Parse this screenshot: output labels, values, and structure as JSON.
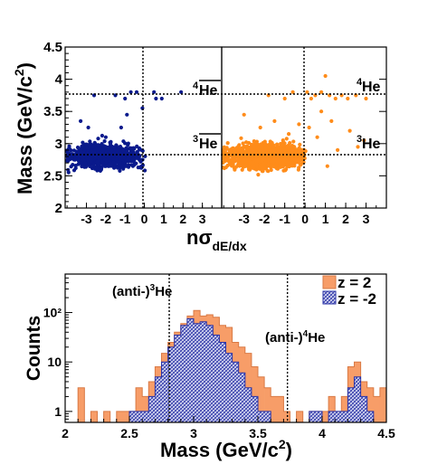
{
  "chart_data": [
    {
      "type": "scatter",
      "ylabel": "Mass (GeV/c²)",
      "ylabel_main": "Mass (GeV/c",
      "ylabel_sup": "2",
      "ylabel_end": ")",
      "xlabel_main": "nσ",
      "xlabel_sub": "dE/dx",
      "ylim": [
        2.0,
        4.5
      ],
      "y_ticks": [
        "2",
        "2.5",
        "3",
        "3.5",
        "4",
        "4.5"
      ],
      "panels": [
        {
          "name": "left",
          "color": "#0a1a8c",
          "xlim": [
            -4.1,
            4.0
          ],
          "x_ticks": [
            "-3",
            "-2",
            "-1",
            "0",
            "1",
            "2",
            "3"
          ],
          "label_top": "He",
          "label_top_sup": "4",
          "label_bottom": "He",
          "label_bottom_sup": "3",
          "overline": true,
          "scatter_core": {
            "x": [
              -4.1,
              0.0
            ],
            "y": [
              2.55,
              3.05
            ]
          },
          "scatter_extra": {
            "x": [
              -2.6,
              -1.5,
              -1.0,
              -0.7,
              -0.4,
              -0.1,
              0.5,
              0.6,
              0.9,
              1.9,
              -2.9,
              -3.3,
              -0.9,
              -1.2,
              -2.0
            ],
            "y": [
              3.75,
              3.75,
              3.7,
              3.8,
              3.8,
              3.55,
              3.8,
              3.7,
              3.7,
              3.8,
              3.25,
              3.35,
              3.45,
              3.25,
              3.1
            ]
          }
        },
        {
          "name": "right",
          "color": "#ff8c1a",
          "xlim": [
            -4.1,
            4.0
          ],
          "x_ticks": [
            "-3",
            "-2",
            "-1",
            "0",
            "1",
            "2",
            "3"
          ],
          "label_top": "He",
          "label_top_sup": "4",
          "label_bottom": "He",
          "label_bottom_sup": "3",
          "overline": false,
          "scatter_core": {
            "x": [
              -4.1,
              0.0
            ],
            "y": [
              2.55,
              3.05
            ]
          },
          "scatter_extra": {
            "x": [
              -1.8,
              -1.0,
              -0.6,
              0.1,
              0.3,
              0.5,
              0.8,
              1.0,
              1.2,
              1.5,
              1.8,
              2.1,
              2.5,
              3.0,
              0.8,
              1.3,
              -0.3,
              0.2,
              2.2,
              2.9,
              -3.0,
              -2.2,
              -1.5,
              0.6,
              1.6,
              2.6,
              1.1,
              -0.8
            ],
            "y": [
              3.75,
              3.7,
              3.8,
              3.8,
              3.7,
              3.75,
              3.8,
              4.05,
              3.75,
              3.7,
              3.75,
              3.7,
              3.75,
              3.7,
              3.5,
              3.35,
              3.3,
              3.25,
              3.2,
              3.05,
              3.45,
              3.25,
              3.35,
              3.1,
              2.9,
              2.95,
              2.65,
              3.15
            ]
          }
        }
      ]
    },
    {
      "type": "bar",
      "ylabel": "Counts",
      "xlabel": "Mass (GeV/c²)",
      "xlabel_main": "Mass (GeV/c",
      "xlabel_sup": "2",
      "xlabel_end": ")",
      "xlim": [
        2.0,
        4.5
      ],
      "x_ticks": [
        "2",
        "2.5",
        "3",
        "3.5",
        "4",
        "4.5"
      ],
      "ylim": [
        0.6,
        600
      ],
      "yscale": "log",
      "y_ticks": [
        "1",
        "10",
        "10²"
      ],
      "bin_width": 0.05,
      "bin_start": 2.0,
      "series": [
        {
          "name": "z = 2",
          "color": "#f79d68",
          "values": [
            0,
            0,
            3,
            0,
            1,
            0,
            1,
            0,
            1,
            1,
            1,
            3,
            2,
            4,
            8,
            15,
            25,
            40,
            60,
            85,
            110,
            85,
            90,
            80,
            55,
            50,
            25,
            20,
            15,
            8,
            5,
            3,
            2,
            2,
            1,
            0,
            1,
            0,
            1,
            1,
            1,
            2,
            1,
            2,
            8,
            10,
            4,
            3,
            2,
            3,
            1,
            1,
            2
          ]
        },
        {
          "name": "z = -2",
          "color": "#5a63c8",
          "values": [
            0,
            0,
            0,
            0,
            0,
            0,
            0,
            0,
            0,
            0,
            1,
            1,
            1,
            2,
            5,
            10,
            20,
            35,
            55,
            75,
            60,
            65,
            55,
            35,
            25,
            15,
            10,
            6,
            3,
            2,
            1,
            1,
            0,
            0,
            0,
            0,
            0,
            0,
            1,
            1,
            0,
            1,
            1,
            1,
            3,
            5,
            2,
            1,
            0,
            0,
            0,
            0,
            0
          ]
        }
      ],
      "annotations": [
        {
          "text": "(anti-)",
          "sup": "3",
          "tail": "He"
        },
        {
          "text": "(anti-)",
          "sup": "4",
          "tail": "He"
        }
      ],
      "reference_lines_x": [
        2.81,
        3.73
      ]
    }
  ]
}
